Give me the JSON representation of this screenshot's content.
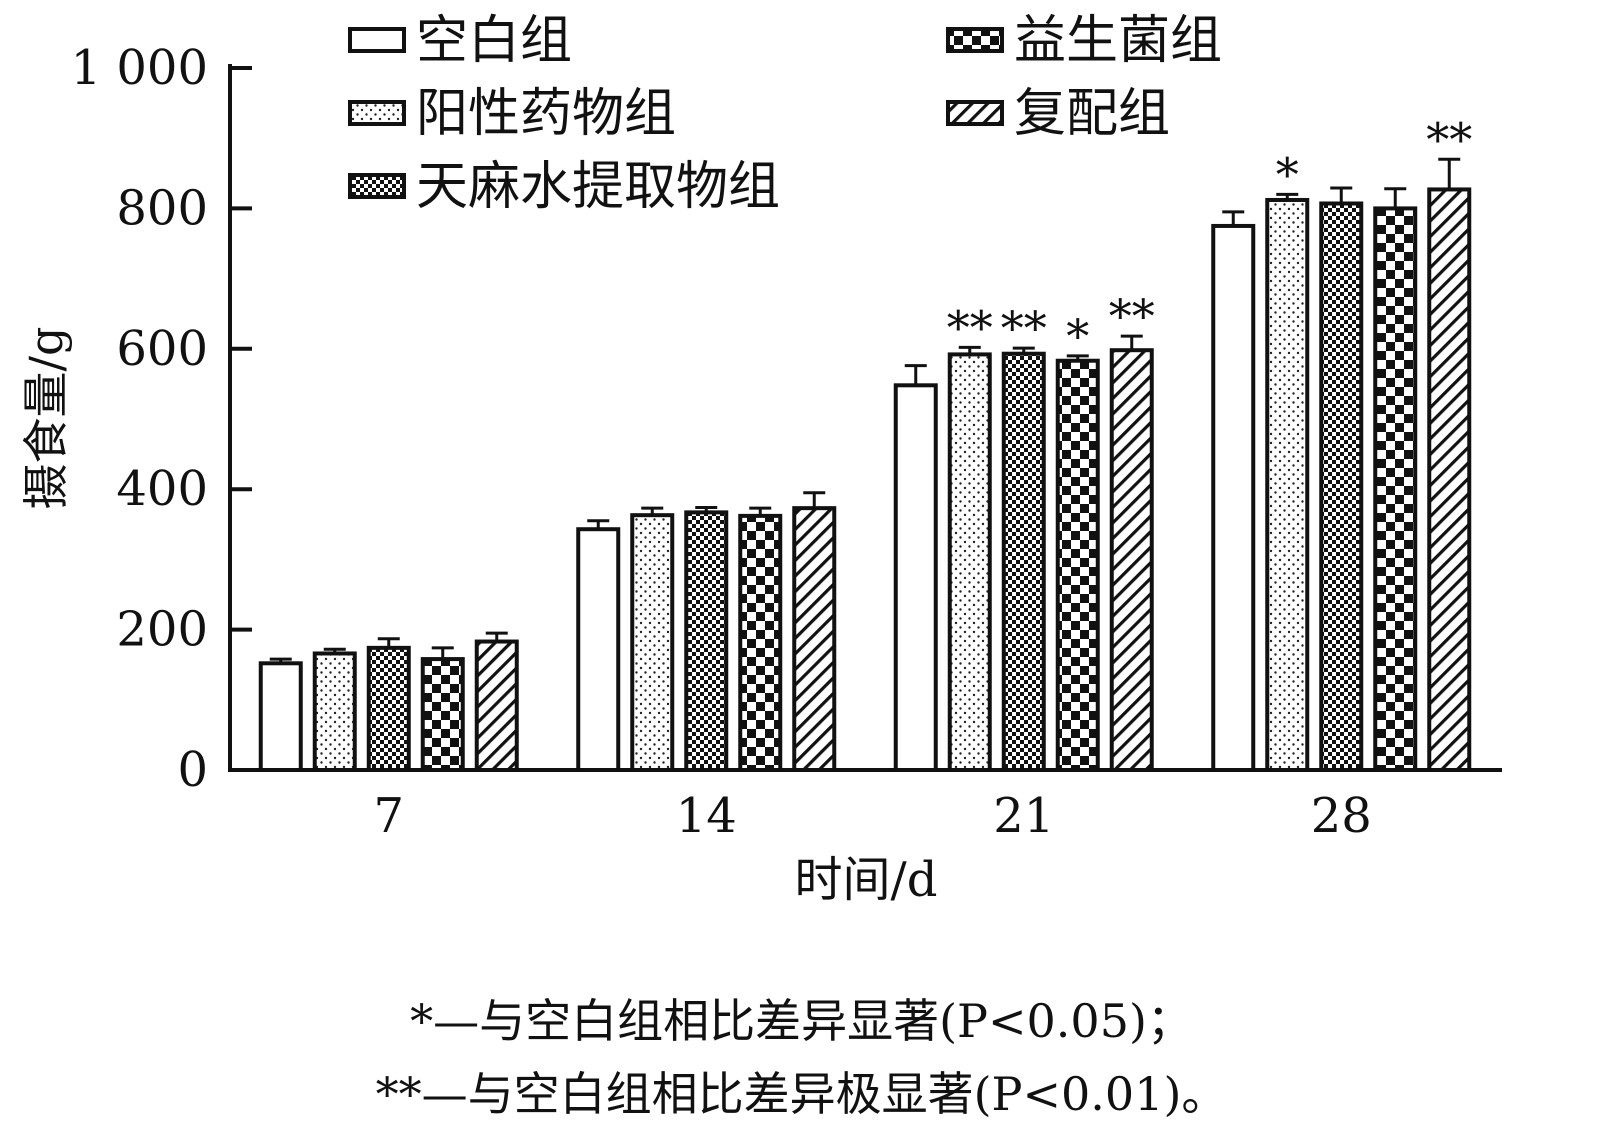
{
  "chart_data": {
    "type": "bar",
    "title": "",
    "xlabel": "时间/d",
    "ylabel": "摄食量/g",
    "ylim": [
      0,
      1000
    ],
    "yticks": [
      0,
      200,
      400,
      600,
      800,
      1000
    ],
    "ytick_labels": [
      "0",
      "200",
      "400",
      "600",
      "800",
      "1 000"
    ],
    "categories": [
      "7",
      "14",
      "21",
      "28"
    ],
    "legend_position": "top",
    "series": [
      {
        "name": "空白组",
        "pattern": "blank",
        "values": [
          152,
          343,
          548,
          775
        ],
        "errors": [
          6,
          12,
          28,
          20
        ],
        "significance": [
          "",
          "",
          "",
          ""
        ]
      },
      {
        "name": "阳性药物组",
        "pattern": "dots",
        "values": [
          166,
          363,
          592,
          812
        ],
        "errors": [
          6,
          10,
          10,
          8
        ],
        "significance": [
          "",
          "",
          "**",
          "*"
        ]
      },
      {
        "name": "天麻水提取物组",
        "pattern": "fine-check",
        "values": [
          174,
          367,
          593,
          807
        ],
        "errors": [
          13,
          7,
          8,
          22
        ],
        "significance": [
          "",
          "",
          "**",
          ""
        ]
      },
      {
        "name": "益生菌组",
        "pattern": "checker",
        "values": [
          158,
          362,
          583,
          800
        ],
        "errors": [
          16,
          11,
          7,
          28
        ],
        "significance": [
          "",
          "",
          "*",
          ""
        ]
      },
      {
        "name": "复配组",
        "pattern": "diagonal",
        "values": [
          183,
          373,
          598,
          827
        ],
        "errors": [
          12,
          22,
          20,
          43
        ],
        "significance": [
          "",
          "",
          "**",
          "**"
        ]
      }
    ]
  },
  "footnotes": [
    "*—与空白组相比差异显著(P<0.05)；",
    "**—与空白组相比差异极显著(P<0.01)。"
  ]
}
